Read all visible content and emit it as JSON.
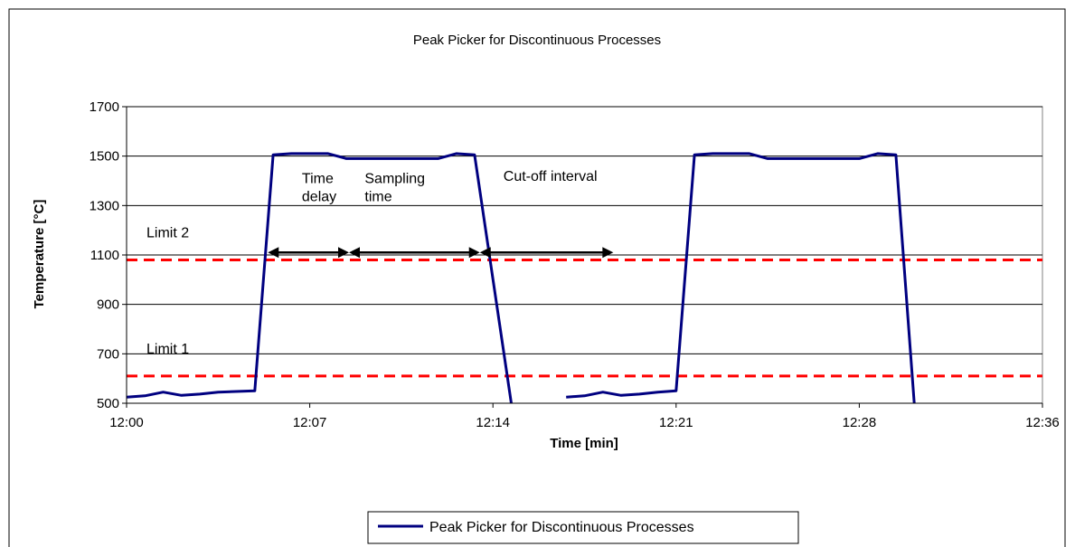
{
  "chart_data": {
    "type": "line",
    "title": "Peak Picker for Discontinuous Processes",
    "xlabel": "Time [min]",
    "ylabel": "Temperature [°C]",
    "x_ticks": [
      "12:00",
      "12:07",
      "12:14",
      "12:21",
      "12:28",
      "12:36"
    ],
    "x_tick_values": [
      0,
      7,
      14,
      21,
      28,
      35
    ],
    "xlim": [
      0,
      35
    ],
    "y_ticks": [
      "500",
      "700",
      "900",
      "1100",
      "1300",
      "1500",
      "1700"
    ],
    "y_tick_values": [
      500,
      700,
      900,
      1100,
      1300,
      1500,
      1700
    ],
    "ylim": [
      500,
      1700
    ],
    "grid": "horizontal",
    "legend_position": "bottom",
    "series": [
      {
        "name": "Peak Picker for Discontinuous Processes",
        "color": "#000080",
        "segments": [
          [
            [
              0,
              525
            ],
            [
              0.7,
              530
            ],
            [
              1.4,
              545
            ],
            [
              2.1,
              532
            ],
            [
              2.8,
              537
            ],
            [
              3.5,
              545
            ],
            [
              4.9,
              550
            ],
            [
              5.6,
              1505
            ],
            [
              6.3,
              1510
            ],
            [
              7.0,
              1510
            ],
            [
              7.7,
              1510
            ],
            [
              8.4,
              1490
            ],
            [
              9.1,
              1490
            ],
            [
              9.8,
              1490
            ],
            [
              10.5,
              1490
            ],
            [
              11.2,
              1490
            ],
            [
              11.9,
              1490
            ],
            [
              12.6,
              1510
            ],
            [
              13.3,
              1505
            ],
            [
              14.7,
              500
            ]
          ],
          [
            [
              16.8,
              525
            ],
            [
              17.5,
              530
            ],
            [
              18.2,
              545
            ],
            [
              18.9,
              532
            ],
            [
              19.6,
              537
            ],
            [
              20.3,
              545
            ],
            [
              21.0,
              550
            ],
            [
              21.7,
              1505
            ],
            [
              22.4,
              1510
            ],
            [
              23.1,
              1510
            ],
            [
              23.8,
              1510
            ],
            [
              24.5,
              1490
            ],
            [
              25.2,
              1490
            ],
            [
              25.9,
              1490
            ],
            [
              26.6,
              1490
            ],
            [
              27.3,
              1490
            ],
            [
              28.0,
              1490
            ],
            [
              28.7,
              1510
            ],
            [
              29.4,
              1505
            ],
            [
              30.1,
              500
            ]
          ]
        ]
      }
    ],
    "thresholds": [
      {
        "label": "Limit 2",
        "value": 1080,
        "color": "#ff0000"
      },
      {
        "label": "Limit 1",
        "value": 610,
        "color": "#ff0000"
      }
    ],
    "annotations": [
      {
        "lines": [
          "Time",
          "delay"
        ],
        "x": 6.7,
        "y": 1390
      },
      {
        "lines": [
          "Sampling",
          "time"
        ],
        "x": 9.1,
        "y": 1390
      },
      {
        "lines": [
          "Cut-off interval"
        ],
        "x": 14.4,
        "y": 1400
      }
    ],
    "intervals": [
      {
        "from": 5.4,
        "to": 8.5,
        "y": 1110
      },
      {
        "from": 8.5,
        "to": 13.5,
        "y": 1110
      },
      {
        "from": 13.5,
        "to": 18.6,
        "y": 1110
      }
    ]
  }
}
